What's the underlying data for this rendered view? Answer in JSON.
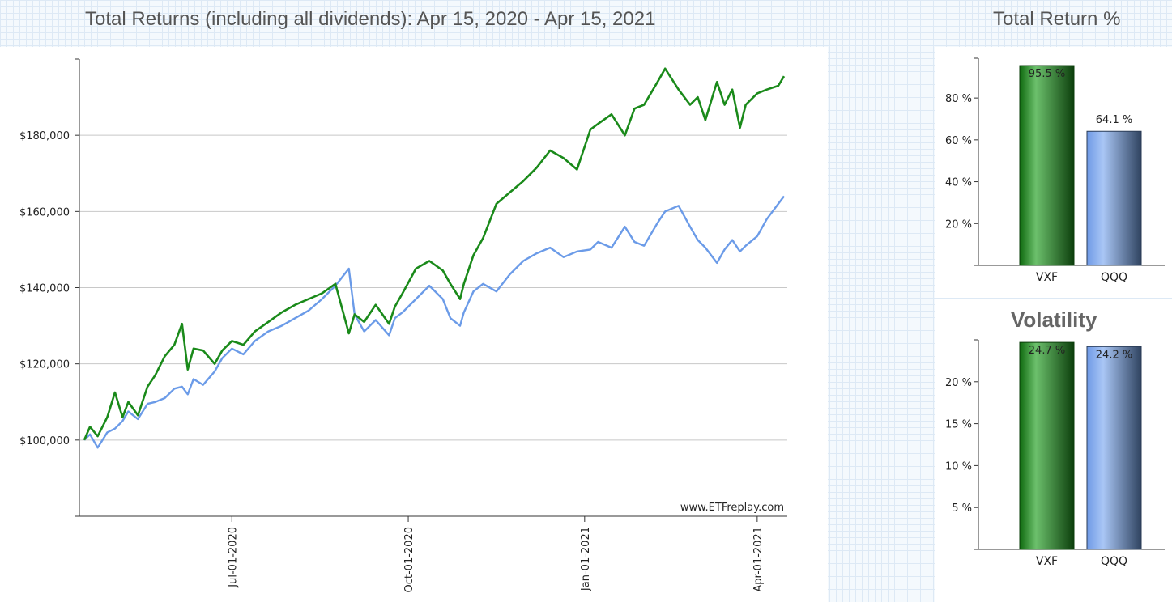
{
  "main_title": "Total Returns (including all dividends): Apr 15, 2020 - Apr 15, 2021",
  "returns_title": "Total Return %",
  "volatility_title": "Volatility",
  "watermark": "www.ETFreplay.com",
  "colors": {
    "vxf": "#1a8a1a",
    "qqq": "#6b9be8",
    "grid": "#c8c8c8",
    "axis": "#333333"
  },
  "chart_data": [
    {
      "type": "line",
      "title": "Total Returns (including all dividends): Apr 15, 2020 - Apr 15, 2021",
      "x_range": [
        "2020-04-15",
        "2021-04-15"
      ],
      "ylim": [
        80000,
        200000
      ],
      "y_ticks": [
        100000,
        120000,
        140000,
        160000,
        180000
      ],
      "y_tick_labels": [
        "$100,000",
        "$120,000",
        "$140,000",
        "$160,000",
        "$180,000"
      ],
      "x_ticks": [
        "2020-07-01",
        "2020-10-01",
        "2021-01-01",
        "2021-04-01"
      ],
      "x_tick_labels": [
        "Jul-01-2020",
        "Oct-01-2020",
        "Jan-01-2021",
        "Apr-01-2021"
      ],
      "grid": true,
      "series": [
        {
          "name": "VXF",
          "x": [
            "2020-04-15",
            "2020-04-18",
            "2020-04-22",
            "2020-04-27",
            "2020-05-01",
            "2020-05-05",
            "2020-05-08",
            "2020-05-13",
            "2020-05-18",
            "2020-05-22",
            "2020-05-27",
            "2020-06-01",
            "2020-06-05",
            "2020-06-08",
            "2020-06-11",
            "2020-06-16",
            "2020-06-22",
            "2020-06-26",
            "2020-07-01",
            "2020-07-07",
            "2020-07-13",
            "2020-07-20",
            "2020-07-27",
            "2020-08-03",
            "2020-08-10",
            "2020-08-17",
            "2020-08-24",
            "2020-08-31",
            "2020-09-03",
            "2020-09-08",
            "2020-09-14",
            "2020-09-21",
            "2020-09-24",
            "2020-09-28",
            "2020-10-05",
            "2020-10-12",
            "2020-10-19",
            "2020-10-23",
            "2020-10-28",
            "2020-10-30",
            "2020-11-04",
            "2020-11-09",
            "2020-11-16",
            "2020-11-23",
            "2020-11-30",
            "2020-12-07",
            "2020-12-14",
            "2020-12-21",
            "2020-12-28",
            "2021-01-04",
            "2021-01-08",
            "2021-01-15",
            "2021-01-22",
            "2021-01-27",
            "2021-02-01",
            "2021-02-08",
            "2021-02-12",
            "2021-02-19",
            "2021-02-25",
            "2021-03-01",
            "2021-03-05",
            "2021-03-11",
            "2021-03-15",
            "2021-03-19",
            "2021-03-23",
            "2021-03-26",
            "2021-04-01",
            "2021-04-06",
            "2021-04-12",
            "2021-04-15"
          ],
          "values": [
            100000,
            103500,
            101000,
            106000,
            112500,
            106000,
            110000,
            106500,
            114000,
            117000,
            122000,
            125000,
            130500,
            118500,
            124000,
            123500,
            120000,
            123500,
            126000,
            125000,
            128500,
            131000,
            133500,
            135500,
            137000,
            138500,
            141000,
            128000,
            133000,
            131000,
            135500,
            130500,
            135000,
            138500,
            145000,
            147000,
            144500,
            141000,
            137000,
            141000,
            148500,
            153000,
            162000,
            165000,
            168000,
            171500,
            176000,
            174000,
            171000,
            181500,
            183000,
            185500,
            180000,
            187000,
            188000,
            194000,
            197500,
            192000,
            188000,
            190000,
            184000,
            194000,
            188000,
            192000,
            182000,
            188000,
            191000,
            192000,
            193000,
            195500
          ]
        },
        {
          "name": "QQQ",
          "x": [
            "2020-04-15",
            "2020-04-18",
            "2020-04-22",
            "2020-04-27",
            "2020-05-01",
            "2020-05-05",
            "2020-05-08",
            "2020-05-13",
            "2020-05-18",
            "2020-05-22",
            "2020-05-27",
            "2020-06-01",
            "2020-06-05",
            "2020-06-08",
            "2020-06-11",
            "2020-06-16",
            "2020-06-22",
            "2020-06-26",
            "2020-07-01",
            "2020-07-07",
            "2020-07-13",
            "2020-07-20",
            "2020-07-27",
            "2020-08-03",
            "2020-08-10",
            "2020-08-17",
            "2020-08-24",
            "2020-08-31",
            "2020-09-03",
            "2020-09-08",
            "2020-09-14",
            "2020-09-21",
            "2020-09-24",
            "2020-09-28",
            "2020-10-05",
            "2020-10-12",
            "2020-10-19",
            "2020-10-23",
            "2020-10-28",
            "2020-10-30",
            "2020-11-04",
            "2020-11-09",
            "2020-11-16",
            "2020-11-23",
            "2020-11-30",
            "2020-12-07",
            "2020-12-14",
            "2020-12-21",
            "2020-12-28",
            "2021-01-04",
            "2021-01-08",
            "2021-01-15",
            "2021-01-22",
            "2021-01-27",
            "2021-02-01",
            "2021-02-08",
            "2021-02-12",
            "2021-02-19",
            "2021-02-25",
            "2021-03-01",
            "2021-03-05",
            "2021-03-11",
            "2021-03-15",
            "2021-03-19",
            "2021-03-23",
            "2021-03-26",
            "2021-04-01",
            "2021-04-06",
            "2021-04-12",
            "2021-04-15"
          ],
          "values": [
            100000,
            101500,
            98000,
            102000,
            103000,
            105000,
            107500,
            105500,
            109500,
            110000,
            111000,
            113500,
            114000,
            112000,
            116000,
            114500,
            118000,
            121500,
            124000,
            122500,
            126000,
            128500,
            130000,
            132000,
            134000,
            137000,
            140500,
            145000,
            133000,
            128500,
            131500,
            127500,
            132000,
            133500,
            137000,
            140500,
            137000,
            132000,
            130000,
            133500,
            139000,
            141000,
            139000,
            143500,
            147000,
            149000,
            150500,
            148000,
            149500,
            150000,
            152000,
            150500,
            156000,
            152000,
            151000,
            157000,
            160000,
            161500,
            156000,
            152500,
            150500,
            146500,
            150000,
            152500,
            149500,
            151000,
            153500,
            158000,
            162000,
            164000
          ]
        }
      ]
    },
    {
      "type": "bar",
      "title": "Total Return %",
      "categories": [
        "VXF",
        "QQQ"
      ],
      "values": [
        95.5,
        64.1
      ],
      "value_labels": [
        "95.5 %",
        "64.1 %"
      ],
      "ylim": [
        0,
        100
      ],
      "y_ticks": [
        20,
        40,
        60,
        80
      ],
      "y_tick_labels": [
        "20 %",
        "40 %",
        "60 %",
        "80 %"
      ]
    },
    {
      "type": "bar",
      "title": "Volatility",
      "categories": [
        "VXF",
        "QQQ"
      ],
      "values": [
        24.7,
        24.2
      ],
      "value_labels": [
        "24.7 %",
        "24.2 %"
      ],
      "ylim": [
        0,
        25
      ],
      "y_ticks": [
        5,
        10,
        15,
        20
      ],
      "y_tick_labels": [
        "5 %",
        "10 %",
        "15 %",
        "20 %"
      ]
    }
  ]
}
